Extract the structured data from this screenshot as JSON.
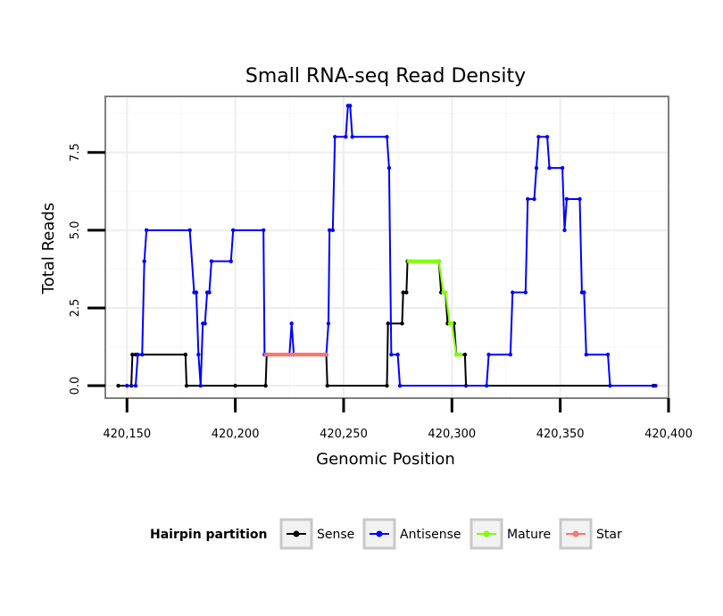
{
  "chart_data": {
    "type": "line",
    "title": "Small RNA-seq Read Density",
    "xlabel": "Genomic Position",
    "ylabel": "Total Reads",
    "xlim": [
      420140,
      420400
    ],
    "ylim": [
      -0.4,
      9.3
    ],
    "x_ticks": [
      420150,
      420200,
      420250,
      420300,
      420350,
      420400
    ],
    "x_tick_labels": [
      "420,150",
      "420,200",
      "420,250",
      "420,300",
      "420,350",
      "420,400"
    ],
    "y_ticks": [
      0,
      2.5,
      5,
      7.5
    ],
    "y_tick_labels": [
      "0.0",
      "2.5",
      "5.0",
      "7.5"
    ],
    "grid": true,
    "legend": {
      "title": "Hairpin partition",
      "position": "bottom",
      "entries": [
        "Sense",
        "Antisense",
        "Mature",
        "Star"
      ]
    },
    "series": [
      {
        "name": "Sense",
        "color": "#000000",
        "points": [
          [
            420146,
            0
          ],
          [
            420152,
            0
          ],
          [
            420152.5,
            1
          ],
          [
            420154,
            1
          ],
          [
            420177,
            1
          ],
          [
            420177.5,
            0
          ],
          [
            420200,
            0
          ],
          [
            420214,
            0
          ],
          [
            420214.5,
            1
          ],
          [
            420242,
            1
          ],
          [
            420242.5,
            0
          ],
          [
            420270,
            0
          ],
          [
            420270.5,
            2
          ],
          [
            420277,
            2
          ],
          [
            420277.5,
            3
          ],
          [
            420279,
            3
          ],
          [
            420279.5,
            4
          ],
          [
            420294,
            4
          ],
          [
            420295,
            3
          ],
          [
            420297,
            3
          ],
          [
            420298,
            2
          ],
          [
            420301,
            2
          ],
          [
            420302,
            1
          ],
          [
            420306,
            1
          ],
          [
            420306.5,
            0
          ],
          [
            420393,
            0
          ]
        ]
      },
      {
        "name": "Antisense",
        "color": "#0000ff",
        "points": [
          [
            420150,
            0
          ],
          [
            420154,
            0
          ],
          [
            420155,
            1
          ],
          [
            420157,
            1
          ],
          [
            420158,
            4
          ],
          [
            420159,
            5
          ],
          [
            420179,
            5
          ],
          [
            420181,
            3
          ],
          [
            420182,
            3
          ],
          [
            420183,
            1
          ],
          [
            420184,
            0
          ],
          [
            420185,
            2
          ],
          [
            420186,
            2
          ],
          [
            420187,
            3
          ],
          [
            420188,
            3
          ],
          [
            420189,
            4
          ],
          [
            420198,
            4
          ],
          [
            420199,
            5
          ],
          [
            420213,
            5
          ],
          [
            420213.5,
            1
          ],
          [
            420225,
            1
          ],
          [
            420226,
            2
          ],
          [
            420227,
            1
          ],
          [
            420242,
            1
          ],
          [
            420243,
            2
          ],
          [
            420243.5,
            5
          ],
          [
            420245,
            5
          ],
          [
            420246,
            8
          ],
          [
            420251,
            8
          ],
          [
            420252,
            9
          ],
          [
            420253,
            9
          ],
          [
            420254,
            8
          ],
          [
            420270,
            8
          ],
          [
            420271,
            7
          ],
          [
            420272,
            1
          ],
          [
            420275,
            1
          ],
          [
            420276,
            0
          ],
          [
            420316,
            0
          ],
          [
            420317,
            1
          ],
          [
            420327,
            1
          ],
          [
            420328,
            3
          ],
          [
            420334,
            3
          ],
          [
            420335,
            6
          ],
          [
            420338,
            6
          ],
          [
            420339,
            7
          ],
          [
            420340,
            8
          ],
          [
            420344,
            8
          ],
          [
            420345,
            7
          ],
          [
            420351,
            7
          ],
          [
            420352,
            5
          ],
          [
            420353,
            6
          ],
          [
            420359,
            6
          ],
          [
            420360,
            3
          ],
          [
            420361,
            3
          ],
          [
            420362,
            1
          ],
          [
            420372,
            1
          ],
          [
            420373,
            0
          ],
          [
            420394,
            0
          ]
        ]
      },
      {
        "name": "Mature",
        "color": "#7fff00",
        "points": [
          [
            420280,
            4
          ],
          [
            420281,
            4
          ],
          [
            420282,
            4
          ],
          [
            420283,
            4
          ],
          [
            420284,
            4
          ],
          [
            420285,
            4
          ],
          [
            420286,
            4
          ],
          [
            420287,
            4
          ],
          [
            420288,
            4
          ],
          [
            420289,
            4
          ],
          [
            420290,
            4
          ],
          [
            420291,
            4
          ],
          [
            420292,
            4
          ],
          [
            420293,
            4
          ],
          [
            420294,
            4
          ],
          [
            420296,
            3
          ],
          [
            420297,
            3
          ],
          [
            420299,
            2
          ],
          [
            420300,
            2
          ],
          [
            420302,
            1
          ],
          [
            420303,
            1
          ],
          [
            420304,
            1
          ]
        ]
      },
      {
        "name": "Star",
        "color": "#f8766d",
        "points": [
          [
            420214,
            1
          ],
          [
            420215,
            1
          ],
          [
            420216,
            1
          ],
          [
            420217,
            1
          ],
          [
            420218,
            1
          ],
          [
            420219,
            1
          ],
          [
            420220,
            1
          ],
          [
            420221,
            1
          ],
          [
            420222,
            1
          ],
          [
            420223,
            1
          ],
          [
            420224,
            1
          ],
          [
            420225,
            1
          ],
          [
            420226,
            1
          ],
          [
            420227,
            1
          ],
          [
            420228,
            1
          ],
          [
            420229,
            1
          ],
          [
            420230,
            1
          ],
          [
            420231,
            1
          ],
          [
            420232,
            1
          ],
          [
            420233,
            1
          ],
          [
            420234,
            1
          ],
          [
            420235,
            1
          ],
          [
            420236,
            1
          ],
          [
            420237,
            1
          ],
          [
            420238,
            1
          ],
          [
            420239,
            1
          ],
          [
            420240,
            1
          ],
          [
            420241,
            1
          ],
          [
            420242,
            1
          ]
        ]
      }
    ]
  }
}
